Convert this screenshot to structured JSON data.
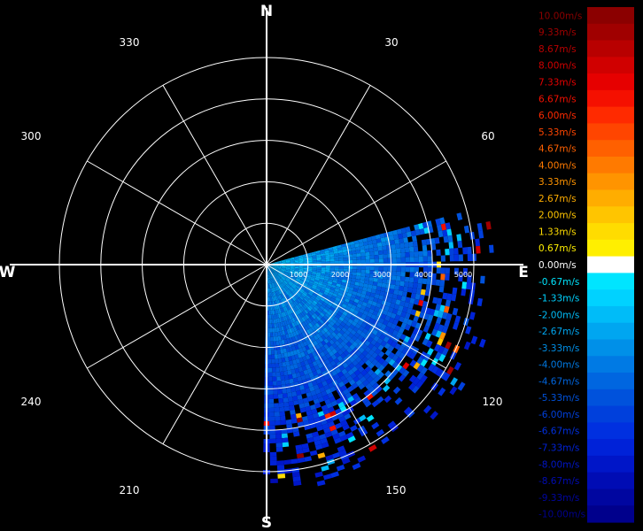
{
  "chart_data": {
    "type": "polar-heatmap",
    "title": "",
    "cardinal_labels": {
      "N": "N",
      "E": "E",
      "S": "S",
      "W": "W"
    },
    "angle_labels": [
      "30",
      "60",
      "120",
      "150",
      "210",
      "240",
      "300",
      "330"
    ],
    "range_labels": [
      "1000",
      "2000",
      "3000",
      "4000",
      "5000"
    ],
    "range_max": 5000,
    "sector_deg": [
      75,
      180
    ],
    "colorbar": {
      "entries": [
        {
          "label": "10.00m/s",
          "color": "#8b0000"
        },
        {
          "label": "9.33m/s",
          "color": "#a00000"
        },
        {
          "label": "8.67m/s",
          "color": "#b80000"
        },
        {
          "label": "8.00m/s",
          "color": "#d00000"
        },
        {
          "label": "7.33m/s",
          "color": "#e60000"
        },
        {
          "label": "6.67m/s",
          "color": "#f51000"
        },
        {
          "label": "6.00m/s",
          "color": "#ff2a00"
        },
        {
          "label": "5.33m/s",
          "color": "#ff4500"
        },
        {
          "label": "4.67m/s",
          "color": "#ff6000"
        },
        {
          "label": "4.00m/s",
          "color": "#ff7a00"
        },
        {
          "label": "3.33m/s",
          "color": "#ff9400"
        },
        {
          "label": "2.67m/s",
          "color": "#ffad00"
        },
        {
          "label": "2.00m/s",
          "color": "#ffc500"
        },
        {
          "label": "1.33m/s",
          "color": "#ffdc00"
        },
        {
          "label": "0.67m/s",
          "color": "#ffef00"
        },
        {
          "label": "0.00m/s",
          "color": "#ffffff"
        },
        {
          "label": "-0.67m/s",
          "color": "#00e5ff"
        },
        {
          "label": "-1.33m/s",
          "color": "#00d2ff"
        },
        {
          "label": "-2.00m/s",
          "color": "#00bcf8"
        },
        {
          "label": "-2.67m/s",
          "color": "#00a6f0"
        },
        {
          "label": "-3.33m/s",
          "color": "#0090e8"
        },
        {
          "label": "-4.00m/s",
          "color": "#007ae4"
        },
        {
          "label": "-4.67m/s",
          "color": "#0066e0"
        },
        {
          "label": "-5.33m/s",
          "color": "#0052dc"
        },
        {
          "label": "-6.00m/s",
          "color": "#0040dc"
        },
        {
          "label": "-6.67m/s",
          "color": "#0030e0"
        },
        {
          "label": "-7.33m/s",
          "color": "#0022d8"
        },
        {
          "label": "-8.00m/s",
          "color": "#0016c8"
        },
        {
          "label": "-8.67m/s",
          "color": "#000cb4"
        },
        {
          "label": "-9.33m/s",
          "color": "#0006a0"
        },
        {
          "label": "-10.00m/s",
          "color": "#00008c"
        }
      ]
    }
  }
}
